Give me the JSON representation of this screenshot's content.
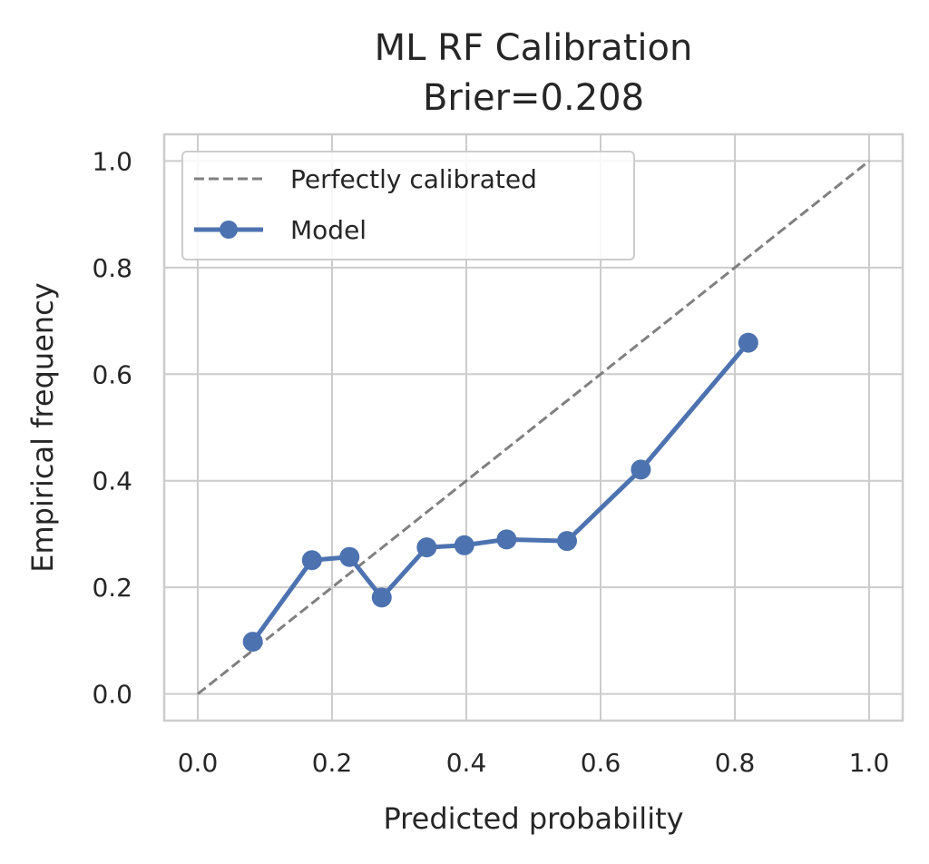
{
  "chart_data": {
    "type": "line",
    "title": "ML RF Calibration",
    "subtitle": "Brier=0.208",
    "xlabel": "Predicted probability",
    "ylabel": "Empirical frequency",
    "xlim": [
      -0.05,
      1.05
    ],
    "ylim": [
      -0.05,
      1.05
    ],
    "xticks": [
      "0.0",
      "0.2",
      "0.4",
      "0.6",
      "0.8",
      "1.0"
    ],
    "yticks": [
      "0.0",
      "0.2",
      "0.4",
      "0.6",
      "0.8",
      "1.0"
    ],
    "grid": true,
    "legend_position": "top-left",
    "series": [
      {
        "name": "Perfectly calibrated",
        "style": "dashed",
        "color": "#808080",
        "x": [
          0.0,
          1.0
        ],
        "y": [
          0.0,
          1.0
        ]
      },
      {
        "name": "Model",
        "style": "line-marker",
        "color": "#4c72b0",
        "x": [
          0.082,
          0.17,
          0.226,
          0.274,
          0.341,
          0.397,
          0.46,
          0.55,
          0.66,
          0.82
        ],
        "y": [
          0.098,
          0.251,
          0.257,
          0.181,
          0.275,
          0.279,
          0.29,
          0.287,
          0.421,
          0.659
        ]
      }
    ]
  }
}
